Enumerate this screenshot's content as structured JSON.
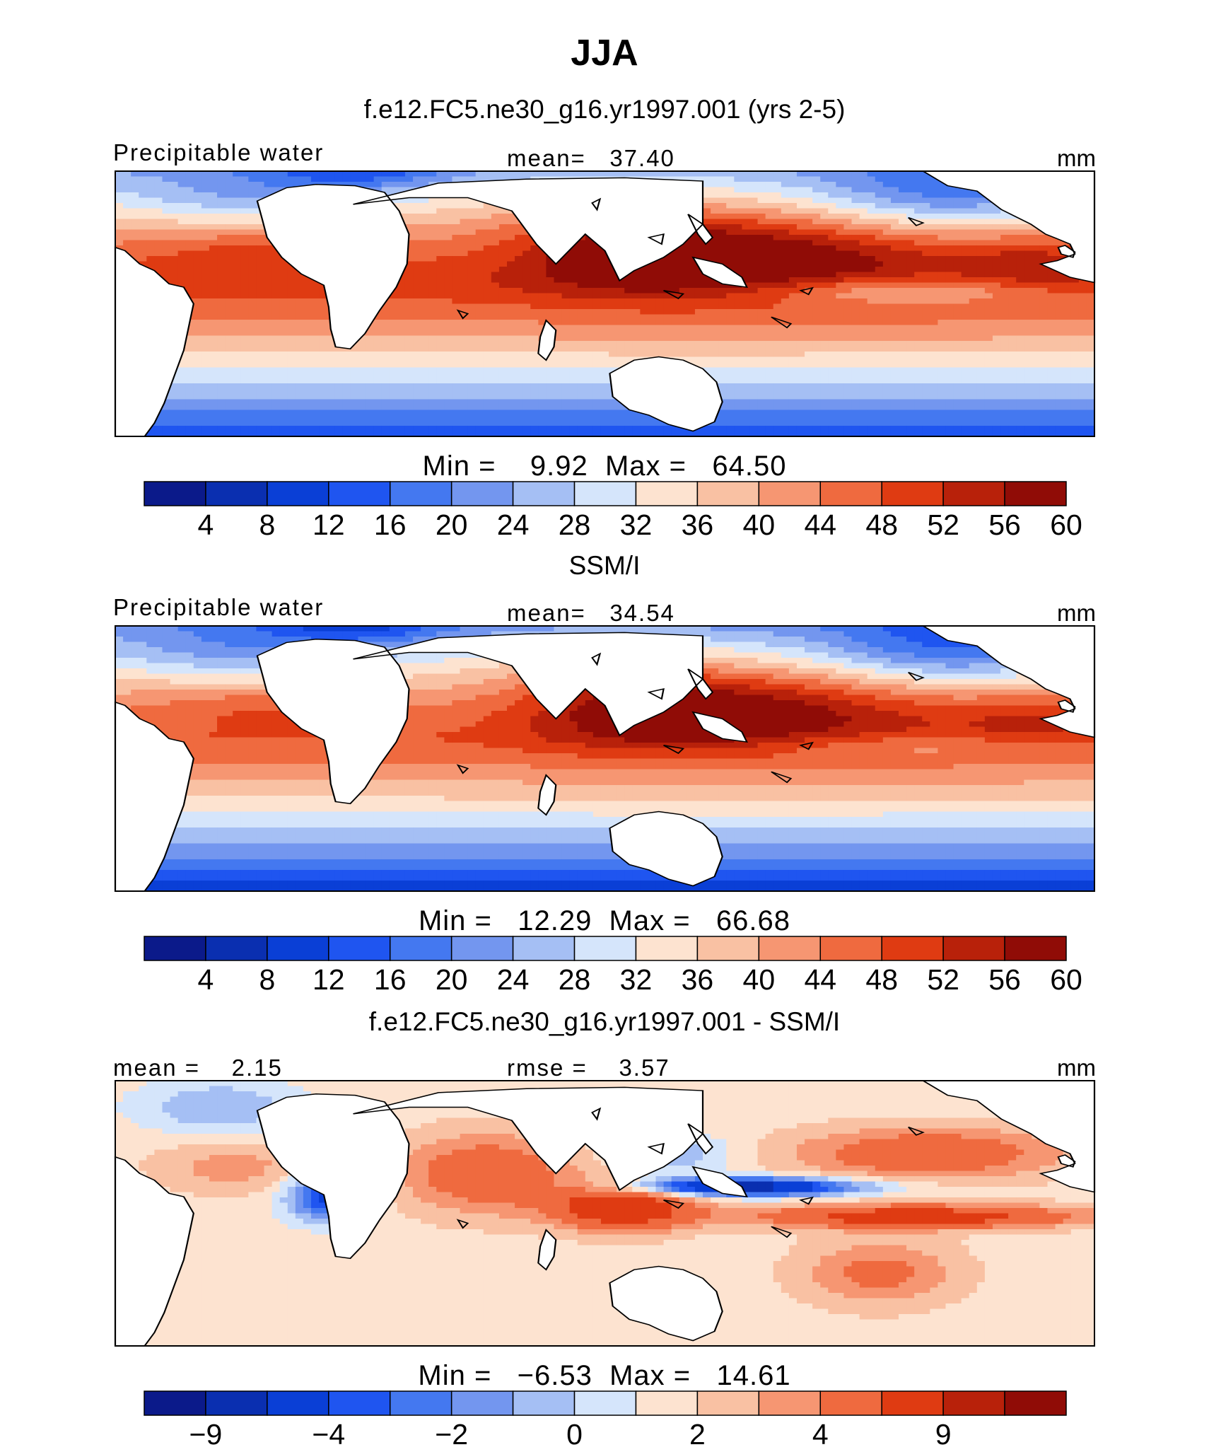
{
  "title": "JJA",
  "panels": [
    {
      "heading": "f.e12.FC5.ne30_g16.yr1997.001 (yrs 2-5)",
      "left_label": "Precipitable water",
      "center_label": "mean=   37.40",
      "units": "mm",
      "minmax": "Min =    9.92  Max =   64.50",
      "field": "model",
      "colorbar": {
        "colors": [
          "#0b1a8a",
          "#0a2fb0",
          "#0a3fd6",
          "#1f55f0",
          "#4478f0",
          "#7396ef",
          "#a5bff4",
          "#d5e5fb",
          "#fde3d0",
          "#f9c1a3",
          "#f69672",
          "#ef6a3f",
          "#df3b12",
          "#b8210a",
          "#900c06"
        ],
        "ticks": [
          "4",
          "8",
          "12",
          "16",
          "20",
          "24",
          "28",
          "32",
          "36",
          "40",
          "44",
          "48",
          "52",
          "56",
          "60"
        ]
      }
    },
    {
      "heading": "SSM/I",
      "left_label": "Precipitable water",
      "center_label": "mean=   34.54",
      "units": "mm",
      "minmax": "Min =   12.29  Max =   66.68",
      "field": "obs",
      "colorbar": {
        "colors": [
          "#0b1a8a",
          "#0a2fb0",
          "#0a3fd6",
          "#1f55f0",
          "#4478f0",
          "#7396ef",
          "#a5bff4",
          "#d5e5fb",
          "#fde3d0",
          "#f9c1a3",
          "#f69672",
          "#ef6a3f",
          "#df3b12",
          "#b8210a",
          "#900c06"
        ],
        "ticks": [
          "4",
          "8",
          "12",
          "16",
          "20",
          "24",
          "28",
          "32",
          "36",
          "40",
          "44",
          "48",
          "52",
          "56",
          "60"
        ]
      }
    },
    {
      "heading": "f.e12.FC5.ne30_g16.yr1997.001 - SSM/I",
      "left_label": "mean =    2.15",
      "center_label": "rmse =    3.57",
      "units": "mm",
      "minmax": "Min =   −6.53  Max =   14.61",
      "field": "diff",
      "colorbar": {
        "colors": [
          "#0b1a8a",
          "#0a2fb0",
          "#0a3fd6",
          "#1f55f0",
          "#4478f0",
          "#7396ef",
          "#a5bff4",
          "#d5e5fb",
          "#fde3d0",
          "#f9c1a3",
          "#f69672",
          "#ef6a3f",
          "#df3b12",
          "#b8210a",
          "#900c06"
        ],
        "ticks": [
          "−9",
          "",
          "−4",
          "",
          "−2",
          "",
          "0",
          "",
          "2",
          "",
          "4",
          "",
          "9",
          ""
        ]
      }
    }
  ]
}
